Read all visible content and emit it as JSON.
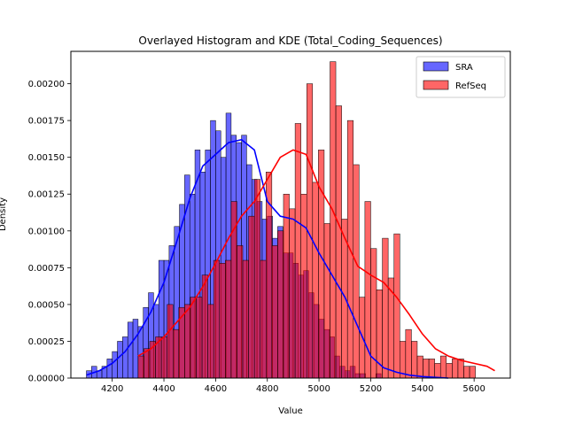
{
  "chart_data": {
    "type": "bar",
    "title": "Overlayed Histogram and KDE (Total_Coding_Sequences)",
    "xlabel": "Value",
    "ylabel": "Density",
    "xlim": [
      4040,
      5740
    ],
    "ylim": [
      0,
      0.00222
    ],
    "xticks": [
      4200,
      4400,
      4600,
      4800,
      5000,
      5200,
      5400,
      5600
    ],
    "yticks": [
      0,
      0.00025,
      0.0005,
      0.00075,
      0.001,
      0.00125,
      0.0015,
      0.00175,
      0.002
    ],
    "ytick_labels": [
      "0.00000",
      "0.00025",
      "0.00050",
      "0.00075",
      "0.00100",
      "0.00125",
      "0.00150",
      "0.00175",
      "0.00200"
    ],
    "legend_position": "top-right",
    "series": [
      {
        "name": "SRA",
        "color": "#0000ff",
        "bin_start": 4100,
        "bin_width": 20,
        "values": [
          5e-05,
          8e-05,
          5e-05,
          8e-05,
          0.00013,
          0.00018,
          0.00025,
          0.00028,
          0.00038,
          0.0004,
          0.00035,
          0.00048,
          0.00058,
          0.0005,
          0.0008,
          0.0008,
          0.0009,
          0.00103,
          0.00118,
          0.00138,
          0.00125,
          0.00155,
          0.0014,
          0.00155,
          0.00175,
          0.00168,
          0.0015,
          0.0018,
          0.00165,
          0.0016,
          0.00165,
          0.00145,
          0.00135,
          0.0012,
          0.00108,
          0.0011,
          0.00095,
          0.00103,
          0.00085,
          0.00085,
          0.00078,
          0.0007,
          0.00073,
          0.00058,
          0.0005,
          0.0004,
          0.00033,
          0.00028,
          0.00015,
          8e-05,
          5e-05,
          8e-05,
          3e-05,
          3e-05,
          0.0,
          0.0,
          3e-05
        ],
        "kde_x": [
          4100,
          4150,
          4200,
          4250,
          4300,
          4350,
          4400,
          4450,
          4500,
          4550,
          4600,
          4650,
          4700,
          4750,
          4800,
          4850,
          4900,
          4950,
          5000,
          5050,
          5100,
          5150,
          5200,
          5250,
          5300,
          5350,
          5400,
          5450,
          5500
        ],
        "kde_y": [
          2e-05,
          5e-05,
          0.0001,
          0.00018,
          0.0003,
          0.00045,
          0.00065,
          0.00093,
          0.00122,
          0.00144,
          0.00152,
          0.0016,
          0.00162,
          0.00155,
          0.0012,
          0.0011,
          0.00108,
          0.00102,
          0.00085,
          0.0007,
          0.00055,
          0.00035,
          0.00015,
          7e-05,
          4e-05,
          2e-05,
          1e-05,
          5e-06,
          0.0
        ]
      },
      {
        "name": "RefSeq",
        "color": "#ff0000",
        "bin_start": 4300,
        "bin_width": 22.5,
        "values": [
          0.00015,
          0.0002,
          0.00025,
          0.00028,
          0.00028,
          0.0005,
          0.00033,
          0.00048,
          0.0005,
          0.00055,
          0.00055,
          0.0007,
          0.0005,
          0.0008,
          0.00078,
          0.0008,
          0.0012,
          0.0009,
          0.0008,
          0.0011,
          0.00135,
          0.0008,
          0.0014,
          0.0009,
          0.001,
          0.00125,
          0.00115,
          0.00173,
          0.00125,
          0.002,
          0.00133,
          0.00155,
          0.00105,
          0.00215,
          0.00185,
          0.00108,
          0.00175,
          0.00145,
          0.00055,
          0.0012,
          0.00088,
          0.0006,
          0.00095,
          0.00068,
          0.00098,
          0.00025,
          0.00033,
          0.00025,
          0.00015,
          0.00013,
          0.00013,
          0.0001,
          0.00015,
          0.0001,
          0.00013,
          0.00013,
          8e-05,
          8e-05
        ]
      }
    ],
    "refseq_kde_x": [
      4300,
      4350,
      4400,
      4450,
      4500,
      4550,
      4600,
      4650,
      4700,
      4750,
      4800,
      4850,
      4900,
      4950,
      5000,
      5050,
      5100,
      5150,
      5200,
      5250,
      5300,
      5350,
      5400,
      5450,
      5500,
      5550,
      5600,
      5650,
      5680
    ],
    "refseq_kde_y": [
      0.00015,
      0.0002,
      0.00028,
      0.00038,
      0.00048,
      0.00062,
      0.00078,
      0.00095,
      0.0011,
      0.0012,
      0.00135,
      0.0015,
      0.00155,
      0.00152,
      0.0013,
      0.00115,
      0.00095,
      0.00076,
      0.0007,
      0.00065,
      0.00055,
      0.00043,
      0.0003,
      0.0002,
      0.00015,
      0.00012,
      0.0001,
      8e-05,
      5e-05
    ]
  }
}
